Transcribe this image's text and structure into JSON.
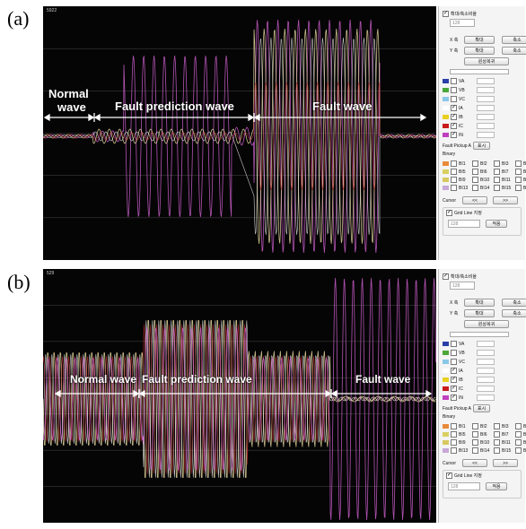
{
  "panels": [
    {
      "label": "(a)",
      "scope_number": "5922",
      "annotations": {
        "normal": [
          "Normal",
          "wave"
        ],
        "fault_prediction": "Fault prediction wave",
        "fault": "Fault wave"
      }
    },
    {
      "label": "(b)",
      "scope_number": "529",
      "annotations": {
        "normal": [
          "Normal wave"
        ],
        "fault_prediction": "Fault prediction wave",
        "fault": "Fault wave"
      }
    }
  ],
  "controls": {
    "zoom_check_label": "확대/축소비율",
    "zoom_value": "128",
    "x_axis_label": "X 축",
    "y_axis_label": "Y 축",
    "zoom_in": "확대",
    "zoom_out": "축소",
    "restore": "원상복귀",
    "channels": [
      {
        "name": "VA",
        "color": "#2a3fa8",
        "checked": false
      },
      {
        "name": "VB",
        "color": "#4aa83a",
        "checked": false
      },
      {
        "name": "VC",
        "color": "#8ac8e8",
        "checked": false
      },
      {
        "name": "IA",
        "color": "#ffffff",
        "checked": true
      },
      {
        "name": "IB",
        "color": "#e8d020",
        "checked": true
      },
      {
        "name": "IC",
        "color": "#c81a1a",
        "checked": true
      },
      {
        "name": "IN",
        "color": "#c040c0",
        "checked": true
      }
    ],
    "fault_pickup_label": "Fault Pickup A",
    "fault_pickup_button": "표시",
    "binary_label": "Binary",
    "binary_colors": [
      "#e88a3a",
      "#d8d060",
      "#d8c860",
      "#c8a8d8"
    ],
    "binary_rows": [
      [
        "BI1",
        "BI2",
        "BI3",
        "BI4"
      ],
      [
        "BI5",
        "BI6",
        "BI7",
        "BI8"
      ],
      [
        "BI9",
        "BI10",
        "BI11",
        "BI12"
      ],
      [
        "BI13",
        "BI14",
        "BI15",
        "BI16"
      ]
    ],
    "cursor_label": "Cursor",
    "cursor_prev": "<<",
    "cursor_next": ">>",
    "grid_line_label": "Grid Line 지정",
    "grid_value": "128",
    "apply_button": "적용"
  },
  "colors": {
    "scope_background": "#050505",
    "grid": "#3a3a3a",
    "wave_yellow": "#e8d8a0",
    "wave_magenta": "#d060d0",
    "wave_red": "#c03030",
    "wave_white": "#f0f0f0"
  }
}
